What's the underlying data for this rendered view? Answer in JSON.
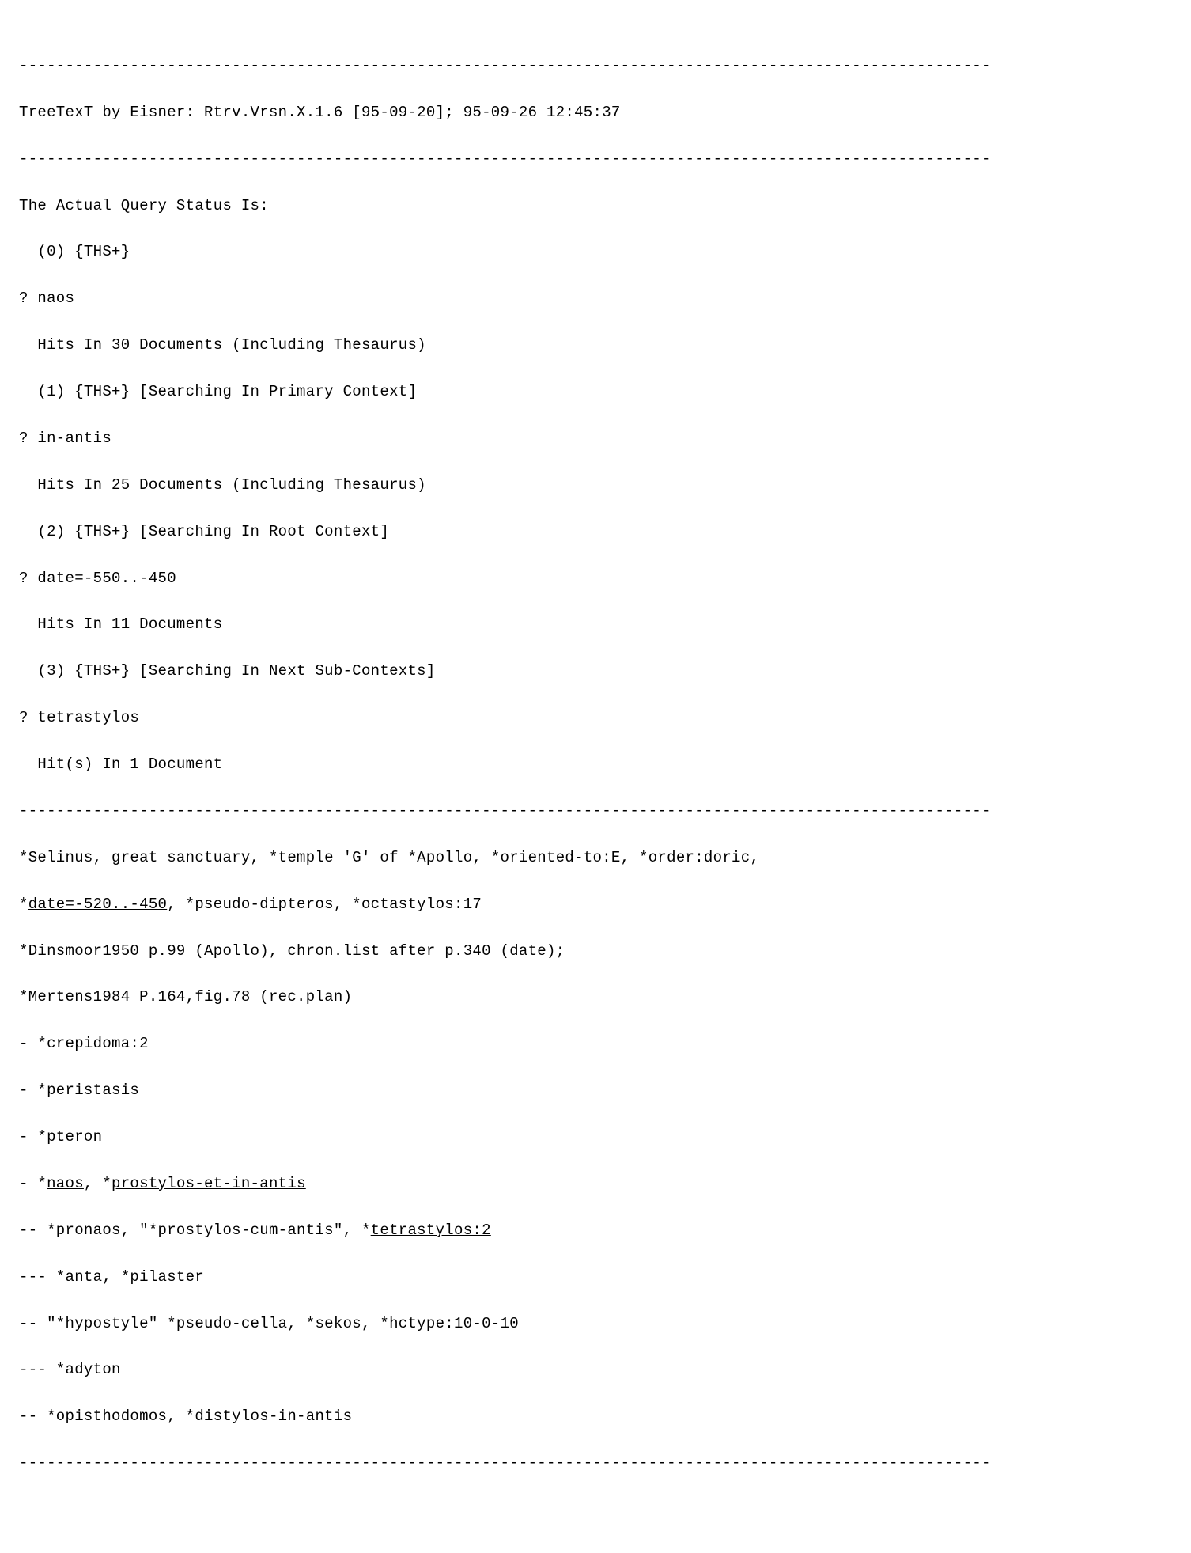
{
  "header": {
    "title": "TreeTexT by Eisner: Rtrv.Vrsn.X.1.6 [95-09-20]; 95-09-26 12:45:37"
  },
  "status": {
    "heading": "The Actual Query Status Is:",
    "level0": "  (0) {THS+}"
  },
  "queries": [
    {
      "prompt": "? naos",
      "hits": "  Hits In 30 Documents (Including Thesaurus)",
      "context": "  (1) {THS+} [Searching In Primary Context]"
    },
    {
      "prompt": "? in-antis",
      "hits": "  Hits In 25 Documents (Including Thesaurus)",
      "context": "  (2) {THS+} [Searching In Root Context]"
    },
    {
      "prompt": "? date=-550..-450",
      "hits": "  Hits In 11 Documents",
      "context": "  (3) {THS+} [Searching In Next Sub-Contexts]"
    },
    {
      "prompt": "? tetrastylos",
      "hits": "  Hit(s) In 1 Document",
      "context": ""
    }
  ],
  "result": {
    "line1_pre": "*Selinus, great sanctuary, *temple 'G' of *Apollo, *oriented-to:E, *order:doric,",
    "line2_star": "*",
    "line2_underlined": "date=-520..-450",
    "line2_rest": ", *pseudo-dipteros, *octastylos:17",
    "line3": "*Dinsmoor1950 p.99 (Apollo), chron.list after p.340 (date);",
    "line4": "*Mertens1984 P.164,fig.78 (rec.plan)",
    "line5": "- *crepidoma:2",
    "line6": "- *peristasis",
    "line7": "- *pteron",
    "line8_pre": "- *",
    "line8_u1": "naos",
    "line8_mid": ", *",
    "line8_u2": "prostylos-et-in-antis",
    "line9_pre": "-- *pronaos, \"*prostylos-cum-antis\", *",
    "line9_u": "tetrastylos:2",
    "line10": "--- *anta, *pilaster",
    "line11": "-- \"*hypostyle\" *pseudo-cella, *sekos, *hctype:10-0-10",
    "line12": "--- *adyton",
    "line13": "-- *opisthodomos, *distylos-in-antis"
  },
  "divider": "---------------------------------------------------------------------------------------------------------"
}
